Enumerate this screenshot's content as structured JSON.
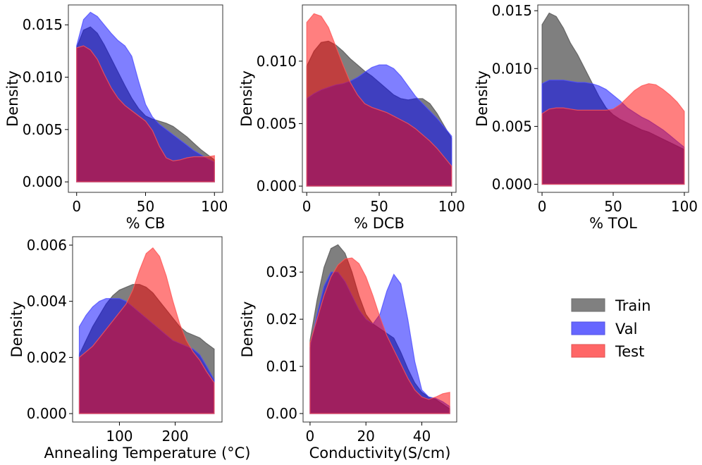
{
  "figure": {
    "legend": {
      "placement": "right of bottom row",
      "entries": [
        {
          "name": "Train",
          "color": "#808080"
        },
        {
          "name": "Val",
          "color": "#6666ff"
        },
        {
          "name": "Test",
          "color": "#ff6666"
        }
      ]
    }
  },
  "chart_data": [
    {
      "type": "area",
      "xlabel": "% CB",
      "ylabel": "Density",
      "xlim": [
        -6,
        106
      ],
      "ylim": [
        -0.001,
        0.0169
      ],
      "xticks": [
        0,
        50,
        100
      ],
      "yticks": [
        0.0,
        0.005,
        0.01,
        0.015
      ],
      "ytick_labels": [
        "0.000",
        "0.005",
        "0.010",
        "0.015"
      ],
      "grid": false,
      "series": [
        {
          "name": "Train",
          "x": [
            0,
            5,
            10,
            15,
            20,
            25,
            30,
            35,
            40,
            45,
            50,
            55,
            60,
            65,
            70,
            75,
            80,
            85,
            90,
            95,
            100
          ],
          "y": [
            0.0128,
            0.0145,
            0.0148,
            0.0142,
            0.0131,
            0.0118,
            0.0105,
            0.0092,
            0.008,
            0.007,
            0.0063,
            0.006,
            0.0058,
            0.0056,
            0.0053,
            0.0048,
            0.0043,
            0.0037,
            0.0031,
            0.0026,
            0.0021
          ]
        },
        {
          "name": "Val",
          "x": [
            0,
            5,
            10,
            15,
            20,
            25,
            30,
            35,
            40,
            45,
            50,
            55,
            60,
            65,
            70,
            75,
            80,
            85,
            90,
            95,
            100
          ],
          "y": [
            0.013,
            0.0155,
            0.0162,
            0.0158,
            0.015,
            0.0142,
            0.0135,
            0.013,
            0.012,
            0.0096,
            0.0074,
            0.0062,
            0.0055,
            0.005,
            0.0045,
            0.004,
            0.0035,
            0.003,
            0.0026,
            0.0022,
            0.0019
          ]
        },
        {
          "name": "Test",
          "x": [
            0,
            5,
            10,
            15,
            20,
            25,
            30,
            35,
            40,
            45,
            50,
            55,
            60,
            65,
            70,
            75,
            80,
            85,
            90,
            95,
            100
          ],
          "y": [
            0.0128,
            0.013,
            0.0126,
            0.0117,
            0.0103,
            0.009,
            0.008,
            0.0073,
            0.0068,
            0.0063,
            0.0058,
            0.0049,
            0.0034,
            0.0023,
            0.002,
            0.0021,
            0.0023,
            0.0024,
            0.0024,
            0.0024,
            0.0025
          ]
        }
      ]
    },
    {
      "type": "area",
      "xlabel": "% DCB",
      "ylabel": "Density",
      "xlim": [
        -3,
        103
      ],
      "ylim": [
        -0.0005,
        0.0145
      ],
      "xticks": [
        0,
        50,
        100
      ],
      "yticks": [
        0.0,
        0.005,
        0.01
      ],
      "ytick_labels": [
        "0.000",
        "0.005",
        "0.010"
      ],
      "grid": false,
      "series": [
        {
          "name": "Train",
          "x": [
            0,
            5,
            10,
            15,
            20,
            25,
            30,
            35,
            40,
            45,
            50,
            55,
            60,
            65,
            70,
            75,
            80,
            85,
            90,
            95,
            100
          ],
          "y": [
            0.0096,
            0.0108,
            0.0115,
            0.0116,
            0.0113,
            0.0108,
            0.0102,
            0.0097,
            0.0092,
            0.0088,
            0.0083,
            0.0078,
            0.0073,
            0.007,
            0.0069,
            0.007,
            0.007,
            0.0066,
            0.0058,
            0.0048,
            0.0038
          ]
        },
        {
          "name": "Val",
          "x": [
            0,
            5,
            10,
            15,
            20,
            25,
            30,
            35,
            40,
            45,
            50,
            55,
            60,
            65,
            70,
            75,
            80,
            85,
            90,
            95,
            100
          ],
          "y": [
            0.007,
            0.0074,
            0.0077,
            0.0079,
            0.0081,
            0.0082,
            0.0084,
            0.0087,
            0.0091,
            0.0095,
            0.0097,
            0.0097,
            0.0094,
            0.0088,
            0.008,
            0.0072,
            0.0066,
            0.006,
            0.0054,
            0.0047,
            0.004
          ]
        },
        {
          "name": "Test",
          "x": [
            0,
            5,
            10,
            15,
            20,
            25,
            30,
            35,
            40,
            45,
            50,
            55,
            60,
            65,
            70,
            75,
            80,
            85,
            90,
            95,
            100
          ],
          "y": [
            0.0131,
            0.0138,
            0.0136,
            0.0127,
            0.0112,
            0.0097,
            0.0083,
            0.0073,
            0.0066,
            0.0063,
            0.0061,
            0.0059,
            0.0056,
            0.0053,
            0.005,
            0.0046,
            0.0041,
            0.0036,
            0.003,
            0.0023,
            0.0016
          ]
        }
      ]
    },
    {
      "type": "area",
      "xlabel": "% TOL",
      "ylabel": "Density",
      "xlim": [
        -3,
        103
      ],
      "ylim": [
        -0.0007,
        0.0155
      ],
      "xticks": [
        0,
        50,
        100
      ],
      "yticks": [
        0.0,
        0.005,
        0.01,
        0.015
      ],
      "ytick_labels": [
        "0.000",
        "0.005",
        "0.010",
        "0.015"
      ],
      "grid": false,
      "series": [
        {
          "name": "Train",
          "x": [
            0,
            5,
            10,
            15,
            20,
            25,
            30,
            35,
            40,
            45,
            50,
            55,
            60,
            65,
            70,
            75,
            80,
            85,
            90,
            95,
            100
          ],
          "y": [
            0.0138,
            0.0148,
            0.0145,
            0.0135,
            0.0122,
            0.0112,
            0.01,
            0.0088,
            0.0076,
            0.0066,
            0.006,
            0.0056,
            0.0053,
            0.005,
            0.0047,
            0.0045,
            0.0042,
            0.0039,
            0.0036,
            0.0033,
            0.003
          ]
        },
        {
          "name": "Val",
          "x": [
            0,
            5,
            10,
            15,
            20,
            25,
            30,
            35,
            40,
            45,
            50,
            55,
            60,
            65,
            70,
            75,
            80,
            85,
            90,
            95,
            100
          ],
          "y": [
            0.0087,
            0.009,
            0.009,
            0.009,
            0.0089,
            0.0088,
            0.0088,
            0.0087,
            0.0085,
            0.0082,
            0.0077,
            0.0072,
            0.0066,
            0.0062,
            0.0058,
            0.0055,
            0.0051,
            0.0047,
            0.0042,
            0.0037,
            0.0032
          ]
        },
        {
          "name": "Test",
          "x": [
            0,
            5,
            10,
            15,
            20,
            25,
            30,
            35,
            40,
            45,
            50,
            55,
            60,
            65,
            70,
            75,
            80,
            85,
            90,
            95,
            100
          ],
          "y": [
            0.0061,
            0.0065,
            0.0066,
            0.0066,
            0.0065,
            0.0064,
            0.0064,
            0.0064,
            0.0064,
            0.0064,
            0.0065,
            0.0069,
            0.0075,
            0.0081,
            0.0085,
            0.0087,
            0.0086,
            0.0082,
            0.0077,
            0.0071,
            0.0063
          ]
        }
      ]
    },
    {
      "type": "area",
      "xlabel": "Annealing Temperature (°C)",
      "ylabel": "Density",
      "xlim": [
        16,
        284
      ],
      "ylim": [
        -0.0003,
        0.0063
      ],
      "xticks": [
        100,
        200
      ],
      "yticks": [
        0.0,
        0.002,
        0.004,
        0.006
      ],
      "ytick_labels": [
        "0.000",
        "0.002",
        "0.004",
        "0.006"
      ],
      "grid": false,
      "series": [
        {
          "name": "Train",
          "x": [
            28,
            40,
            52,
            64,
            76,
            88,
            100,
            112,
            124,
            136,
            148,
            160,
            172,
            184,
            196,
            208,
            220,
            232,
            244,
            256,
            270
          ],
          "y": [
            0.0021,
            0.0026,
            0.0031,
            0.0035,
            0.0039,
            0.0042,
            0.0044,
            0.0045,
            0.0046,
            0.0046,
            0.0045,
            0.0043,
            0.004,
            0.0037,
            0.0034,
            0.0031,
            0.0029,
            0.0028,
            0.0027,
            0.0025,
            0.0023
          ]
        },
        {
          "name": "Val",
          "x": [
            28,
            40,
            52,
            64,
            76,
            88,
            100,
            112,
            124,
            136,
            148,
            160,
            172,
            184,
            196,
            208,
            220,
            232,
            244,
            256,
            270
          ],
          "y": [
            0.0031,
            0.0035,
            0.0038,
            0.004,
            0.0041,
            0.0041,
            0.0041,
            0.004,
            0.0038,
            0.0036,
            0.0034,
            0.0032,
            0.003,
            0.0028,
            0.0026,
            0.0025,
            0.0024,
            0.0023,
            0.0021,
            0.0017,
            0.0012
          ]
        },
        {
          "name": "Test",
          "x": [
            28,
            40,
            52,
            64,
            76,
            88,
            100,
            112,
            124,
            136,
            148,
            160,
            172,
            184,
            196,
            208,
            220,
            232,
            244,
            256,
            270
          ],
          "y": [
            0.002,
            0.0022,
            0.0024,
            0.0027,
            0.003,
            0.0033,
            0.0036,
            0.0039,
            0.0044,
            0.0051,
            0.0057,
            0.0059,
            0.0056,
            0.0049,
            0.004,
            0.0032,
            0.0026,
            0.0022,
            0.0019,
            0.0015,
            0.0011
          ]
        }
      ]
    },
    {
      "type": "area",
      "xlabel": "Conductivity(S/cm)",
      "ylabel": "Density",
      "xlim": [
        -2.5,
        52.5
      ],
      "ylim": [
        -0.0018,
        0.0375
      ],
      "xticks": [
        0,
        20,
        40
      ],
      "yticks": [
        0.0,
        0.01,
        0.02,
        0.03
      ],
      "ytick_labels": [
        "0.00",
        "0.01",
        "0.02",
        "0.03"
      ],
      "grid": false,
      "series": [
        {
          "name": "Train",
          "x": [
            0,
            2.5,
            5,
            7.5,
            10,
            12.5,
            15,
            17.5,
            20,
            22.5,
            25,
            27.5,
            30,
            32.5,
            35,
            37.5,
            40,
            42.5,
            45,
            47.5,
            50
          ],
          "y": [
            0.0155,
            0.024,
            0.031,
            0.035,
            0.0358,
            0.034,
            0.03,
            0.025,
            0.021,
            0.019,
            0.018,
            0.017,
            0.016,
            0.013,
            0.0095,
            0.0065,
            0.0045,
            0.0035,
            0.003,
            0.002,
            0.001
          ]
        },
        {
          "name": "Val",
          "x": [
            0,
            2.5,
            5,
            7.5,
            10,
            12.5,
            15,
            17.5,
            20,
            22.5,
            25,
            27.5,
            30,
            32.5,
            35,
            37.5,
            40,
            42.5,
            45,
            47.5,
            50
          ],
          "y": [
            0.014,
            0.021,
            0.027,
            0.03,
            0.03,
            0.028,
            0.025,
            0.022,
            0.02,
            0.019,
            0.021,
            0.026,
            0.0295,
            0.0275,
            0.02,
            0.011,
            0.005,
            0.0035,
            0.0032,
            0.0025,
            0.0015
          ]
        },
        {
          "name": "Test",
          "x": [
            0,
            2.5,
            5,
            7.5,
            10,
            12.5,
            15,
            17.5,
            20,
            22.5,
            25,
            27.5,
            30,
            32.5,
            35,
            37.5,
            40,
            42.5,
            45,
            47.5,
            50
          ],
          "y": [
            0.015,
            0.02,
            0.025,
            0.029,
            0.0315,
            0.0328,
            0.033,
            0.0318,
            0.029,
            0.025,
            0.0205,
            0.0165,
            0.0135,
            0.0105,
            0.0075,
            0.005,
            0.0035,
            0.003,
            0.0035,
            0.0042,
            0.0045
          ]
        }
      ]
    }
  ]
}
